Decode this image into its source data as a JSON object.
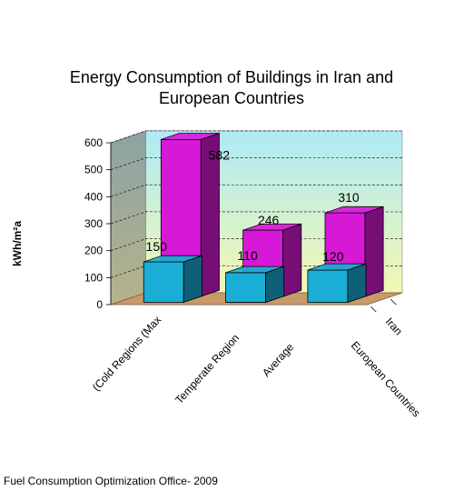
{
  "chart_data": {
    "type": "bar",
    "title_lines": [
      "Energy Consumption of Buildings in Iran and",
      "European Countries"
    ],
    "ylabel": "kWh/m²a",
    "ylim": [
      0,
      600
    ],
    "yticks": [
      0,
      100,
      200,
      300,
      400,
      500,
      600
    ],
    "categories": [
      "(Cold Regions (Max",
      "Temperate Region",
      "Average"
    ],
    "series": [
      {
        "name": "European Countries",
        "values": [
          150,
          110,
          120
        ],
        "color": "#1aaed6"
      },
      {
        "name": "Iran",
        "values": [
          582,
          246,
          310
        ],
        "color": "#d619d6"
      }
    ],
    "grid": true,
    "source": "Fuel Consumption Optimization Office- 2009"
  }
}
